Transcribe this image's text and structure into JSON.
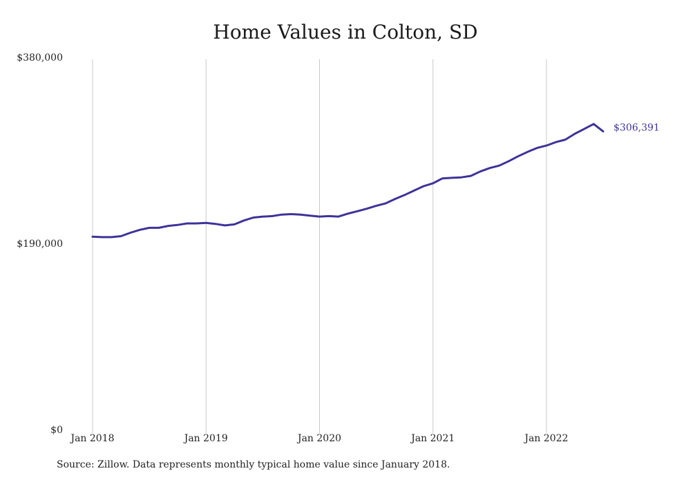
{
  "chart_data": {
    "type": "line",
    "title": "Home Values in Colton, SD",
    "xlabel": "",
    "ylabel": "",
    "ylim": [
      0,
      380000
    ],
    "y_ticks": [
      {
        "value": 0,
        "label": "$0"
      },
      {
        "value": 190000,
        "label": "$190,000"
      },
      {
        "value": 380000,
        "label": "$380,000"
      }
    ],
    "x_ticks": [
      {
        "value": "2018-01",
        "label": "Jan 2018"
      },
      {
        "value": "2019-01",
        "label": "Jan 2019"
      },
      {
        "value": "2020-01",
        "label": "Jan 2020"
      },
      {
        "value": "2021-01",
        "label": "Jan 2021"
      },
      {
        "value": "2022-01",
        "label": "Jan 2022"
      }
    ],
    "grid": "vertical",
    "series": [
      {
        "color": "#3d3399",
        "x": [
          "2018-01",
          "2018-02",
          "2018-03",
          "2018-04",
          "2018-05",
          "2018-06",
          "2018-07",
          "2018-08",
          "2018-09",
          "2018-10",
          "2018-11",
          "2018-12",
          "2019-01",
          "2019-02",
          "2019-03",
          "2019-04",
          "2019-05",
          "2019-06",
          "2019-07",
          "2019-08",
          "2019-09",
          "2019-10",
          "2019-11",
          "2019-12",
          "2020-01",
          "2020-02",
          "2020-03",
          "2020-04",
          "2020-05",
          "2020-06",
          "2020-07",
          "2020-08",
          "2020-09",
          "2020-10",
          "2020-11",
          "2020-12",
          "2021-01",
          "2021-02",
          "2021-03",
          "2021-04",
          "2021-05",
          "2021-06",
          "2021-07",
          "2021-08",
          "2021-09",
          "2021-10",
          "2021-11",
          "2021-12",
          "2022-01",
          "2022-02",
          "2022-03",
          "2022-04",
          "2022-05",
          "2022-06",
          "2022-07"
        ],
        "values": [
          199000,
          198500,
          198500,
          199500,
          203000,
          206000,
          208000,
          208000,
          210000,
          211000,
          212500,
          212500,
          213000,
          212000,
          210500,
          211500,
          215500,
          218500,
          219500,
          220000,
          221500,
          222000,
          221500,
          220500,
          219500,
          220000,
          219500,
          222500,
          225000,
          227500,
          230500,
          233000,
          237500,
          241500,
          246000,
          250500,
          253500,
          258500,
          259000,
          259500,
          261000,
          265500,
          269000,
          271500,
          276000,
          281000,
          285500,
          289500,
          292000,
          295500,
          298000,
          304000,
          309000,
          314000,
          306391
        ],
        "end_label": "$306,391"
      }
    ]
  },
  "source_note": "Source: Zillow. Data represents monthly typical home value since January 2018."
}
